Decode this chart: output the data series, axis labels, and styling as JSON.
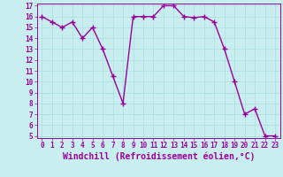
{
  "x": [
    0,
    1,
    2,
    3,
    4,
    5,
    6,
    7,
    8,
    9,
    10,
    11,
    12,
    13,
    14,
    15,
    16,
    17,
    18,
    19,
    20,
    21,
    22,
    23
  ],
  "y": [
    16,
    15.5,
    15,
    15.5,
    14,
    15,
    13,
    10.5,
    8,
    16,
    16,
    16,
    17,
    17,
    16,
    15.9,
    16,
    15.5,
    13,
    10,
    7,
    7.5,
    5,
    5
  ],
  "line_color": "#990099",
  "marker_color": "#990099",
  "bg_color": "#c8eef0",
  "grid_color": "#aadddd",
  "xlabel": "Windchill (Refroidissement éolien,°C)",
  "ylim_min": 5,
  "ylim_max": 17,
  "xlim_min": -0.5,
  "xlim_max": 23.5,
  "yticks": [
    5,
    6,
    7,
    8,
    9,
    10,
    11,
    12,
    13,
    14,
    15,
    16,
    17
  ],
  "xticks": [
    0,
    1,
    2,
    3,
    4,
    5,
    6,
    7,
    8,
    9,
    10,
    11,
    12,
    13,
    14,
    15,
    16,
    17,
    18,
    19,
    20,
    21,
    22,
    23
  ],
  "tick_fontsize": 5.5,
  "xlabel_fontsize": 7.0,
  "linewidth": 1.0,
  "markersize": 2.0
}
